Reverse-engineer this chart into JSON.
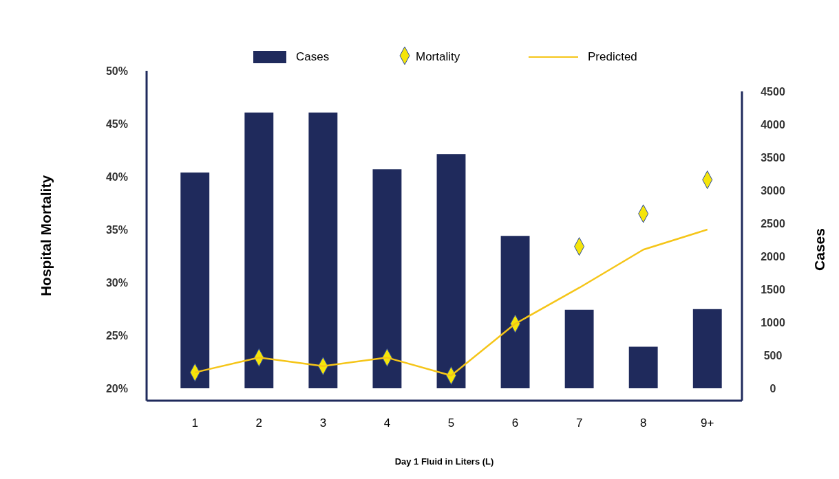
{
  "chart_data": {
    "type": "bar",
    "xlabel": "Day  1 Fluid in Liters (L)",
    "ylabel": "Hospital Mortality",
    "y2label": "Cases",
    "categories": [
      "1",
      "2",
      "3",
      "4",
      "5",
      "6",
      "7",
      "8",
      "9+"
    ],
    "series": [
      {
        "name": "Cases",
        "axis": "y2",
        "color": "#1f2a5c",
        "values": [
          3270,
          4180,
          4180,
          3320,
          3550,
          2310,
          1190,
          630,
          1200
        ]
      },
      {
        "name": "Mortality",
        "type": "scatter",
        "marker": "diamond",
        "color": "#f5e50a",
        "values": [
          21.5,
          22.9,
          22.1,
          22.9,
          21.2,
          26.1,
          33.4,
          36.5,
          39.7
        ]
      },
      {
        "name": "Predicted",
        "type": "line",
        "marker": "none",
        "color": "#f5c518",
        "values": [
          21.5,
          22.9,
          22.1,
          22.9,
          21.2,
          26.1,
          29.5,
          33.1,
          35.0
        ]
      }
    ],
    "ylim": [
      20,
      50
    ],
    "yticks": [
      {
        "value": 20,
        "label": "20%"
      },
      {
        "value": 25,
        "label": "25%"
      },
      {
        "value": 30,
        "label": "30%"
      },
      {
        "value": 35,
        "label": "35%"
      },
      {
        "value": 40,
        "label": "40%"
      },
      {
        "value": 45,
        "label": "45%"
      },
      {
        "value": 50,
        "label": "50%"
      }
    ],
    "y2lim": [
      0,
      4500
    ],
    "y2ticks": [
      0,
      500,
      1000,
      1500,
      2000,
      2500,
      3000,
      3500,
      4000,
      4500
    ],
    "legend": "top",
    "grid": false
  }
}
